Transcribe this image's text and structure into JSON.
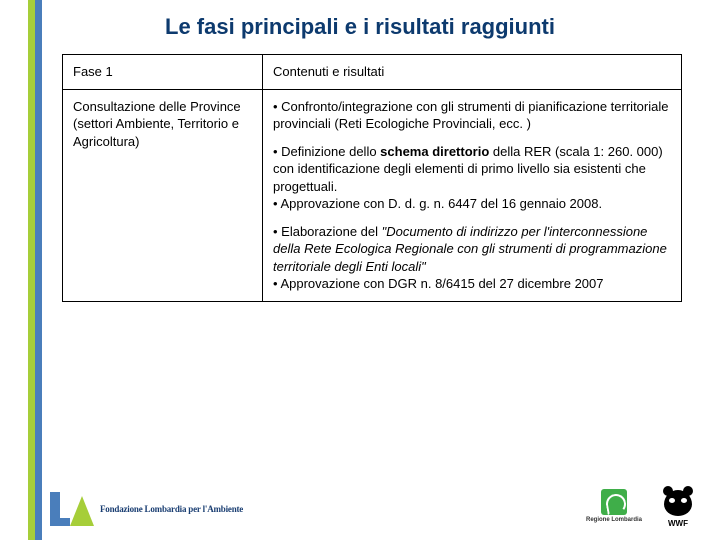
{
  "title": "Le fasi principali e i risultati raggiunti",
  "table": {
    "header": {
      "c1": "Fase 1",
      "c2": "Contenuti e risultati"
    },
    "row1": {
      "c1_line1": "Consultazione delle Province",
      "c1_line2": "(settori Ambiente, Territorio e Agricoltura)",
      "p1": "• Confronto/integrazione con gli strumenti di pianificazione territoriale provinciali (Reti Ecologiche Provinciali, ecc. )",
      "p2a": "• Definizione dello ",
      "p2b": "schema direttorio",
      "p2c": " della RER (scala 1: 260. 000) con identificazione degli elementi di primo livello sia esistenti che progettuali.",
      "p2d": "• Approvazione con D. d. g. n. 6447 del 16 gennaio 2008.",
      "p3a": "• Elaborazione del ",
      "p3b": "\"Documento di indirizzo per l'interconnessione della Rete Ecologica Regionale con gli strumenti di programmazione territoriale degli Enti locali\"",
      "p3c": "• Approvazione con DGR n. 8/6415 del 27 dicembre 2007"
    }
  },
  "footer": {
    "fla": "Fondazione Lombardia per l'Ambiente",
    "regione": "Regione Lombardia",
    "wwf": "WWF"
  }
}
